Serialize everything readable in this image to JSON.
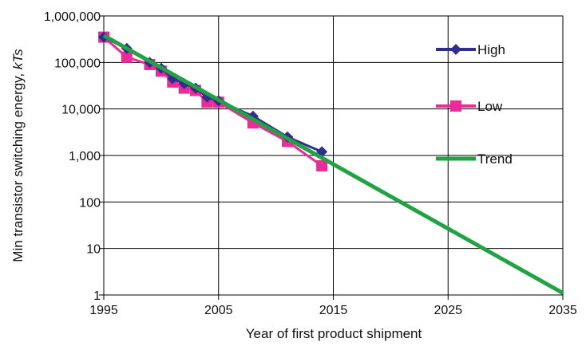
{
  "chart_data": {
    "type": "line",
    "title": "",
    "xlabel": "Year of first product shipment",
    "ylabel_main": "Min transistor switching energy, ",
    "ylabel_italic": "kTs",
    "xlim": [
      1995,
      2035
    ],
    "ylim": [
      1,
      1000000
    ],
    "yscale": "log",
    "grid": true,
    "legend_position": "right",
    "x_ticks": [
      1995,
      2005,
      2015,
      2025,
      2035
    ],
    "x_tick_labels": [
      "1995",
      "2005",
      "2015",
      "2025",
      "2035"
    ],
    "y_ticks": [
      1,
      10,
      100,
      1000,
      10000,
      100000,
      1000000
    ],
    "y_tick_labels": [
      "1",
      "10",
      "100",
      "1,000",
      "10,000",
      "100,000",
      "1,000,000"
    ],
    "series": [
      {
        "name": "High",
        "color": "#2e2e8f",
        "marker": "diamond",
        "x": [
          1995,
          1997,
          1999,
          2000,
          2001,
          2002,
          2003,
          2004,
          2005,
          2008,
          2011,
          2014
        ],
        "y": [
          350000,
          200000,
          100000,
          75000,
          45000,
          35000,
          28000,
          18000,
          15000,
          7000,
          2500,
          1200
        ]
      },
      {
        "name": "Low",
        "color": "#ec2a9a",
        "marker": "square",
        "x": [
          1995,
          1997,
          1999,
          2000,
          2001,
          2002,
          2003,
          2004,
          2005,
          2008,
          2011,
          2014
        ],
        "y": [
          350000,
          130000,
          90000,
          65000,
          38000,
          28000,
          25000,
          14000,
          14000,
          5000,
          2000,
          600
        ]
      },
      {
        "name": "Trend",
        "color": "#1fa343",
        "marker": "none",
        "x": [
          1995,
          2035
        ],
        "y": [
          380000,
          1.1
        ]
      }
    ]
  }
}
